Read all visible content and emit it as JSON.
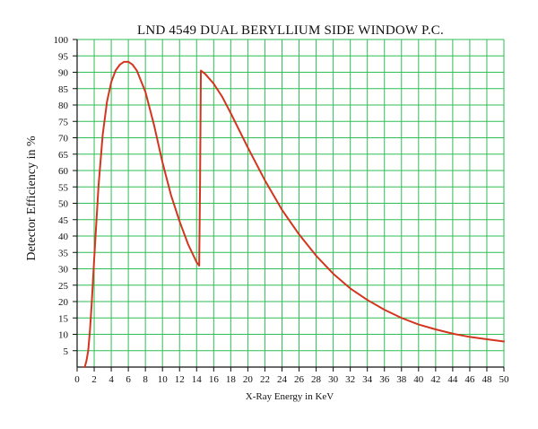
{
  "chart_data": {
    "type": "line",
    "title": "LND 4549 DUAL BERYLLIUM SIDE WINDOW P.C.",
    "xlabel": "X-Ray Energy in KeV",
    "ylabel": "Detector Efficiency in %",
    "xlim": [
      0,
      50
    ],
    "ylim": [
      0,
      100
    ],
    "x_ticks": [
      0,
      2,
      4,
      6,
      8,
      10,
      12,
      14,
      16,
      18,
      20,
      22,
      24,
      26,
      28,
      30,
      32,
      34,
      36,
      38,
      40,
      42,
      44,
      46,
      48,
      50
    ],
    "y_ticks": [
      5,
      10,
      15,
      20,
      25,
      30,
      35,
      40,
      45,
      50,
      55,
      60,
      65,
      70,
      75,
      80,
      85,
      90,
      95,
      100
    ],
    "grid": true,
    "colors": {
      "grid": "#2fbf55",
      "series": "#d4351f",
      "axis": "#111111"
    },
    "series": [
      {
        "points": [
          [
            0.9,
            0
          ],
          [
            1.1,
            2
          ],
          [
            1.3,
            5
          ],
          [
            1.5,
            11
          ],
          [
            1.7,
            19
          ],
          [
            2.0,
            33
          ],
          [
            2.5,
            55
          ],
          [
            3.0,
            71
          ],
          [
            3.5,
            81
          ],
          [
            4.0,
            87
          ],
          [
            4.5,
            90.5
          ],
          [
            5.0,
            92.3
          ],
          [
            5.5,
            93.2
          ],
          [
            6.0,
            93.2
          ],
          [
            6.5,
            92.3
          ],
          [
            7.0,
            90.5
          ],
          [
            8.0,
            84
          ],
          [
            9.0,
            74
          ],
          [
            10.0,
            62.5
          ],
          [
            11.0,
            52.5
          ],
          [
            12.0,
            44.5
          ],
          [
            13.0,
            37.5
          ],
          [
            14.0,
            32
          ],
          [
            14.3,
            31
          ]
        ]
      },
      {
        "points": [
          [
            14.3,
            31
          ],
          [
            14.4,
            55
          ],
          [
            14.5,
            90.5
          ],
          [
            15.0,
            89.5
          ],
          [
            16.0,
            86.5
          ],
          [
            17.0,
            82.5
          ],
          [
            18.0,
            77.5
          ],
          [
            20.0,
            67
          ],
          [
            22.0,
            57
          ],
          [
            24.0,
            48
          ],
          [
            26.0,
            40.5
          ],
          [
            28.0,
            34
          ],
          [
            30.0,
            28.5
          ],
          [
            32.0,
            24
          ],
          [
            34.0,
            20.5
          ],
          [
            36.0,
            17.5
          ],
          [
            38.0,
            15
          ],
          [
            40.0,
            13
          ],
          [
            42.0,
            11.5
          ],
          [
            44.0,
            10.2
          ],
          [
            46.0,
            9.2
          ],
          [
            48.0,
            8.5
          ],
          [
            50.0,
            7.8
          ]
        ]
      }
    ]
  }
}
